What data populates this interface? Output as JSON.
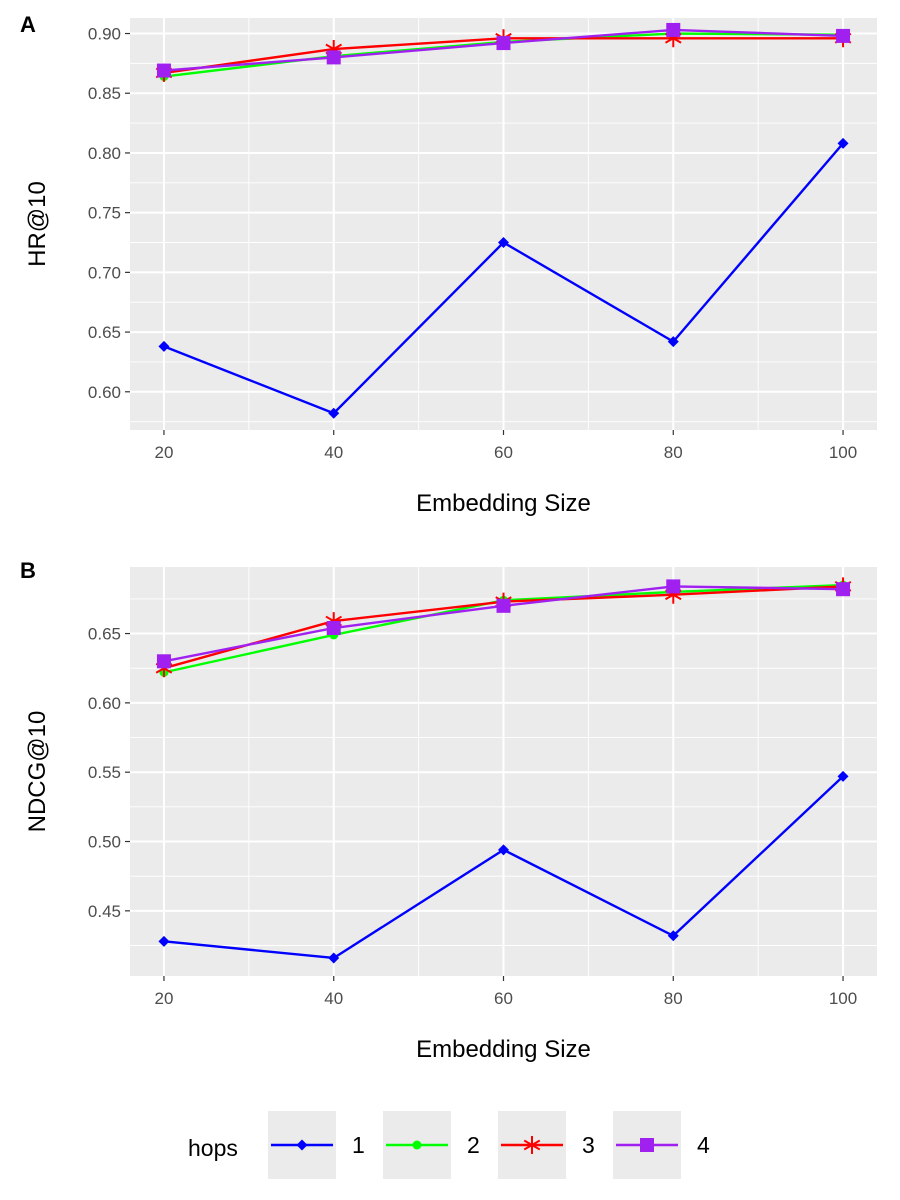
{
  "chart_data": [
    {
      "type": "line",
      "panel_label": "A",
      "xlabel": "Embedding Size",
      "ylabel": "HR@10",
      "x": [
        20,
        40,
        60,
        80,
        100
      ],
      "x_ticks": [
        "20",
        "40",
        "60",
        "80",
        "100"
      ],
      "xlim": [
        16,
        104
      ],
      "ylim": [
        0.568,
        0.913
      ],
      "y_ticks": [
        "0.60",
        "0.65",
        "0.70",
        "0.75",
        "0.80",
        "0.85",
        "0.90"
      ],
      "grid": true,
      "series": [
        {
          "name": "1",
          "color": "#0000ff",
          "marker": "diamond",
          "values": [
            0.638,
            0.582,
            0.725,
            0.642,
            0.808
          ]
        },
        {
          "name": "2",
          "color": "#00ff00",
          "marker": "circle",
          "values": [
            0.864,
            0.881,
            0.893,
            0.9,
            0.899
          ]
        },
        {
          "name": "3",
          "color": "#ff0000",
          "marker": "asterisk",
          "values": [
            0.867,
            0.887,
            0.896,
            0.896,
            0.896
          ]
        },
        {
          "name": "4",
          "color": "#a020f0",
          "marker": "square",
          "values": [
            0.869,
            0.88,
            0.892,
            0.903,
            0.898
          ]
        }
      ]
    },
    {
      "type": "line",
      "panel_label": "B",
      "xlabel": "Embedding Size",
      "ylabel": "NDCG@10",
      "x": [
        20,
        40,
        60,
        80,
        100
      ],
      "x_ticks": [
        "20",
        "40",
        "60",
        "80",
        "100"
      ],
      "xlim": [
        16,
        104
      ],
      "ylim": [
        0.403,
        0.698
      ],
      "y_ticks": [
        "0.45",
        "0.50",
        "0.55",
        "0.60",
        "0.65"
      ],
      "grid": true,
      "series": [
        {
          "name": "1",
          "color": "#0000ff",
          "marker": "diamond",
          "values": [
            0.428,
            0.416,
            0.494,
            0.432,
            0.547
          ]
        },
        {
          "name": "2",
          "color": "#00ff00",
          "marker": "circle",
          "values": [
            0.622,
            0.649,
            0.674,
            0.68,
            0.685
          ]
        },
        {
          "name": "3",
          "color": "#ff0000",
          "marker": "asterisk",
          "values": [
            0.625,
            0.659,
            0.673,
            0.678,
            0.684
          ]
        },
        {
          "name": "4",
          "color": "#a020f0",
          "marker": "square",
          "values": [
            0.63,
            0.654,
            0.67,
            0.684,
            0.682
          ]
        }
      ]
    }
  ],
  "legend": {
    "title": "hops",
    "position": "bottom",
    "items": [
      "1",
      "2",
      "3",
      "4"
    ]
  },
  "colors": {
    "panel_background": "#ebebeb",
    "grid": "#ffffff"
  }
}
